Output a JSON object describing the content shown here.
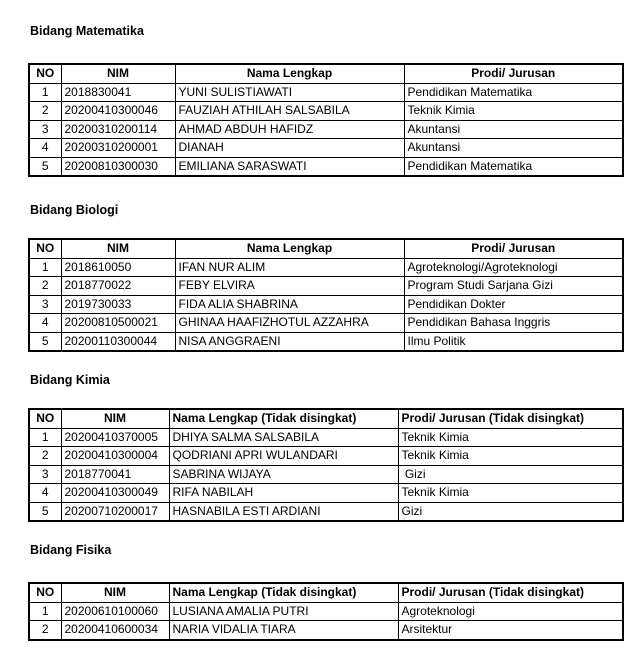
{
  "colors": {
    "background": "#ffffff",
    "text": "#000000",
    "table_border": "#000000"
  },
  "document": {
    "sections": [
      {
        "title": "Bidang Matematika",
        "headers": [
          "NO",
          "NIM",
          "Nama Lengkap",
          "Prodi/ Jurusan"
        ],
        "rows": [
          [
            "1",
            "2018830041",
            "YUNI SULISTIAWATI",
            "Pendidikan Matematika"
          ],
          [
            "2",
            "20200410300046",
            "FAUZIAH ATHILAH SALSABILA",
            "Teknik Kimia"
          ],
          [
            "3",
            "20200310200114",
            "AHMAD ABDUH HAFIDZ",
            "Akuntansi"
          ],
          [
            "4",
            "20200310200001",
            "DIANAH",
            "Akuntansi"
          ],
          [
            "5",
            "20200810300030",
            "EMILIANA SARASWATI",
            "Pendidikan Matematika"
          ]
        ]
      },
      {
        "title": "Bidang Biologi",
        "headers": [
          "NO",
          "NIM",
          "Nama Lengkap",
          "Prodi/ Jurusan"
        ],
        "rows": [
          [
            "1",
            "2018610050",
            "IFAN NUR ALIM",
            "Agroteknologi/Agroteknologi"
          ],
          [
            "2",
            "2018770022",
            "FEBY ELVIRA",
            "Program Studi Sarjana Gizi"
          ],
          [
            "3",
            "2019730033",
            "FIDA ALIA SHABRINA",
            "Pendidikan Dokter"
          ],
          [
            "4",
            "20200810500021",
            "GHINAA HAAFIZHOTUL AZZAHRA",
            "Pendidikan Bahasa Inggris"
          ],
          [
            "5",
            "20200110300044",
            "NISA ANGGRAENI",
            "Ilmu Politik"
          ]
        ]
      },
      {
        "title": "Bidang Kimia",
        "headers": [
          "NO",
          "NIM",
          "Nama Lengkap (Tidak disingkat)",
          "Prodi/ Jurusan (Tidak disingkat)"
        ],
        "rows": [
          [
            "1",
            "20200410370005",
            "DHIYA SALMA SALSABILA",
            "Teknik Kimia"
          ],
          [
            "2",
            "20200410300004",
            "QODRIANI APRI WULANDARI",
            "Teknik Kimia"
          ],
          [
            "3",
            "2018770041",
            "SABRINA WIJAYA",
            " Gizi"
          ],
          [
            "4",
            "20200410300049",
            "RIFA NABILAH",
            "Teknik Kimia"
          ],
          [
            "5",
            "20200710200017",
            "HASNABILA ESTI ARDIANI",
            "Gizi"
          ]
        ]
      },
      {
        "title": "Bidang Fisika",
        "headers": [
          "NO",
          "NIM",
          "Nama Lengkap (Tidak disingkat)",
          "Prodi/ Jurusan (Tidak disingkat)"
        ],
        "rows": [
          [
            "1",
            "20200610100060",
            "LUSIANA AMALIA PUTRI",
            "Agroteknologi"
          ],
          [
            "2",
            "20200410600034",
            "NARIA VIDALIA TIARA",
            "Arsitektur"
          ]
        ]
      }
    ]
  }
}
